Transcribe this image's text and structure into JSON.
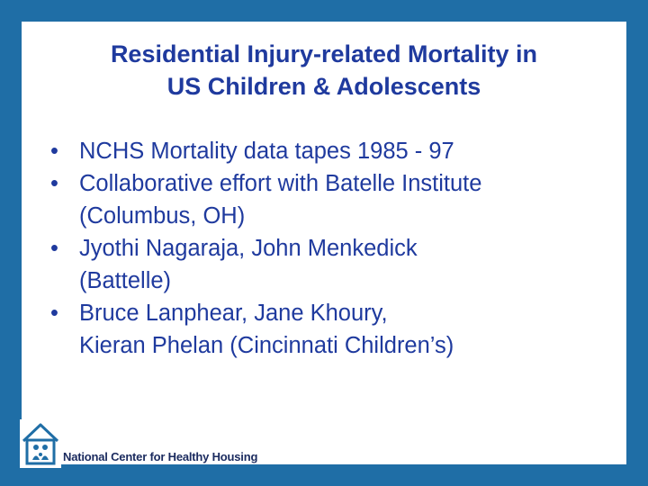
{
  "slide": {
    "title_lines": [
      "Residential Injury-related Mortality in",
      "US Children & Adolescents"
    ],
    "bullets": [
      {
        "lines": [
          "NCHS Mortality data tapes 1985 - 97"
        ]
      },
      {
        "lines": [
          "Collaborative effort with Batelle Institute",
          "(Columbus, OH)"
        ]
      },
      {
        "lines": [
          "Jyothi Nagaraja, John Menkedick",
          "(Battelle)"
        ]
      },
      {
        "lines": [
          "Bruce Lanphear, Jane Khoury,",
          "Kieran Phelan (Cincinnati Children’s)"
        ]
      }
    ],
    "bullet_glyph": "•"
  },
  "footer": {
    "org_name": "National Center for Healthy Housing",
    "logo_icon": "house-family-icon"
  },
  "colors": {
    "frame": "#1f6ea6",
    "text": "#1f3a9e",
    "footer_text": "#1a2a5e"
  }
}
